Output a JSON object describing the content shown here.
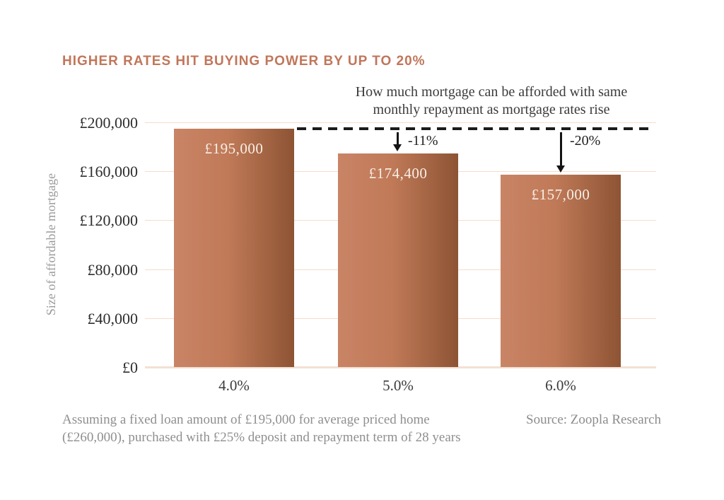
{
  "title": "HIGHER RATES HIT BUYING POWER BY UP TO 20%",
  "subtitle": {
    "line1": "How much mortgage can be afforded with same",
    "line2": "monthly repayment as mortgage rates rise"
  },
  "footnote": {
    "line1": "Assuming a fixed loan amount of £195,000 for average priced home",
    "line2": "(£260,000), purchased with £25% deposit and repayment term of 28 years"
  },
  "source": "Source: Zoopla Research",
  "colors": {
    "accent_title": "#c1765a",
    "bar_gradient_light": "#c98466",
    "bar_gradient_dark": "#8d5434",
    "gridline": "#f6dcc9",
    "dashed_reference": "#1b1b1b",
    "bar_value_text": "#f7efe7"
  },
  "chart_data": {
    "type": "bar",
    "title": "HIGHER RATES HIT BUYING POWER BY UP TO 20%",
    "categories": [
      "4.0%",
      "5.0%",
      "6.0%"
    ],
    "values": [
      195000,
      174400,
      157000
    ],
    "bar_value_labels": [
      "£195,000",
      "£174,400",
      "£157,000"
    ],
    "annotations": [
      {
        "target_category": "5.0%",
        "label": "-11%"
      },
      {
        "target_category": "6.0%",
        "label": "-20%"
      }
    ],
    "reference_line": {
      "style": "dashed",
      "value": 195000
    },
    "xlabel": "",
    "ylabel": "Size of affordable mortgage",
    "ylim": [
      0,
      200000
    ],
    "yticks": [
      200000,
      160000,
      120000,
      80000,
      40000,
      0
    ],
    "ytick_labels": [
      "£200,000",
      "£160,000",
      "£120,000",
      "£80,000",
      "£40,000",
      "£0"
    ],
    "grid": true,
    "legend_position": "none"
  }
}
